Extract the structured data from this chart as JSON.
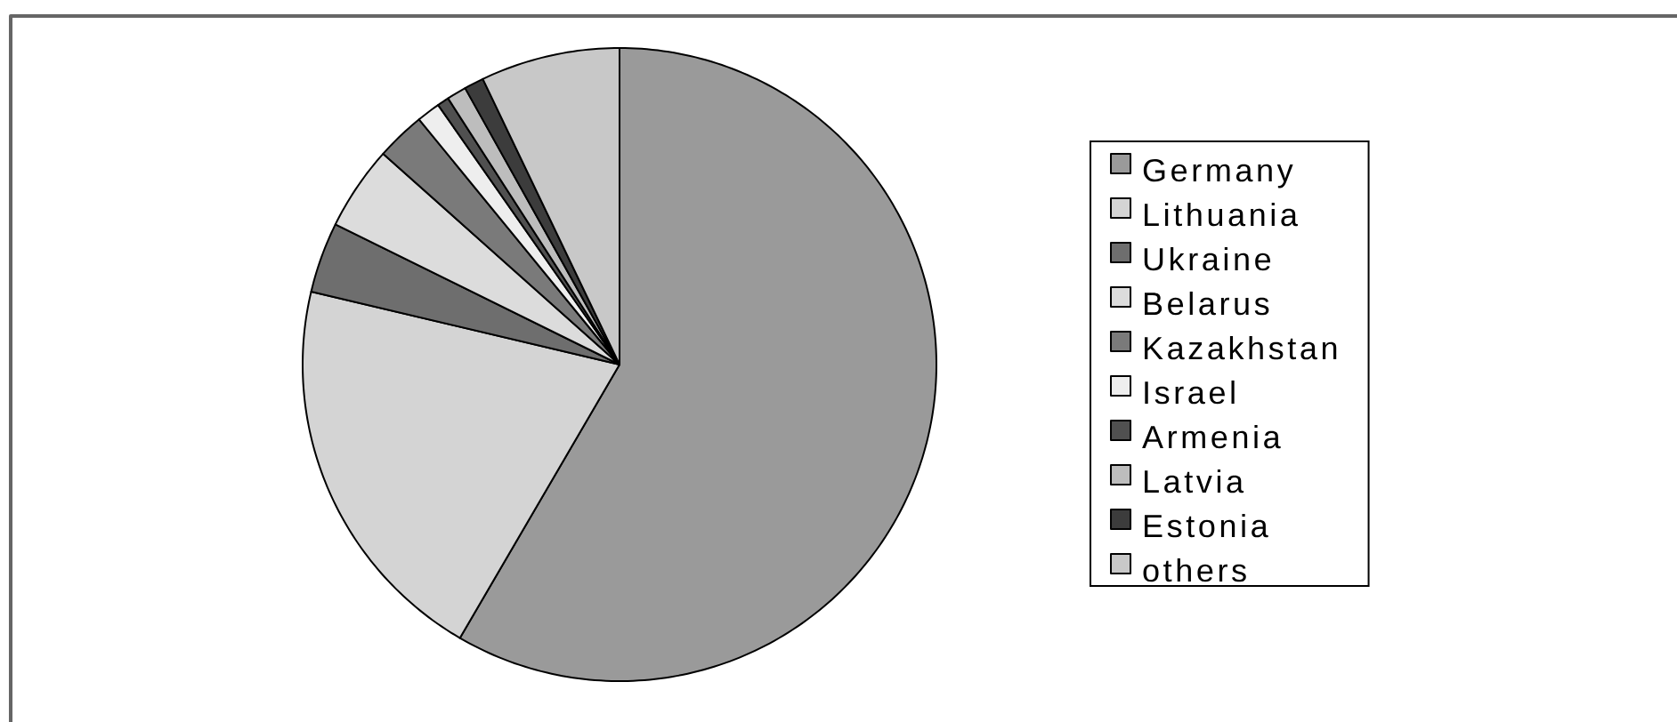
{
  "chart_data": {
    "type": "pie",
    "categories": [
      "Germany",
      "Lithuania",
      "Ukraine",
      "Belarus",
      "Kazakhstan",
      "Israel",
      "Armenia",
      "Latvia",
      "Estonia",
      "others"
    ],
    "values": [
      58.4,
      20.3,
      3.6,
      4.3,
      2.5,
      1.2,
      0.6,
      1.0,
      1.0,
      7.1
    ],
    "colors": [
      "#9a9a9a",
      "#d4d4d4",
      "#6e6e6e",
      "#dcdcdc",
      "#7a7a7a",
      "#eeeeee",
      "#505050",
      "#bdbdbd",
      "#3c3c3c",
      "#c8c8c8"
    ],
    "legend": "right"
  }
}
